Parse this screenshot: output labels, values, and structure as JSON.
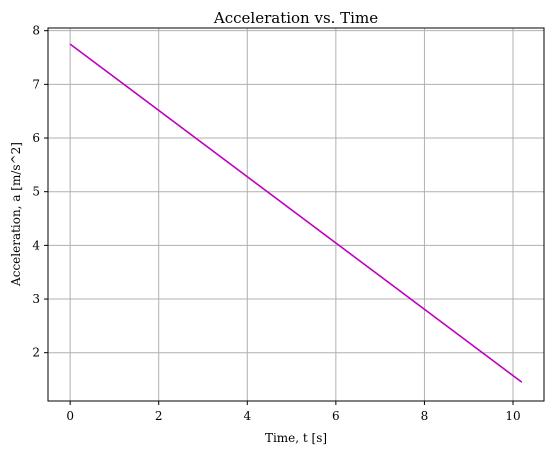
{
  "chart_data": {
    "type": "line",
    "title": "Acceleration vs. Time",
    "xlabel": "Time, t [s]",
    "ylabel": "Acceleration, a [m/s^2]",
    "xlim": [
      -0.5,
      10.7
    ],
    "ylim": [
      1.1,
      8.05
    ],
    "xticks": [
      0,
      2,
      4,
      6,
      8,
      10
    ],
    "yticks": [
      2,
      3,
      4,
      5,
      6,
      7,
      8
    ],
    "xtick_labels": [
      "0",
      "2",
      "4",
      "6",
      "8",
      "10"
    ],
    "ytick_labels": [
      "2",
      "3",
      "4",
      "5",
      "6",
      "7",
      "8"
    ],
    "grid": true,
    "series": [
      {
        "color": "#bf00bf",
        "x": [
          0,
          10.2
        ],
        "y": [
          7.75,
          1.45
        ]
      }
    ]
  }
}
